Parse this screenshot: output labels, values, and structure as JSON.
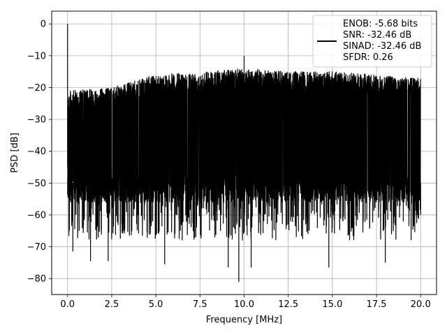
{
  "chart_data": {
    "type": "line",
    "xlabel": "Frequency [MHz]",
    "ylabel": "PSD [dB]",
    "xlim": [
      -0.9,
      20.9
    ],
    "ylim": [
      -85,
      4
    ],
    "x_ticks": [
      0.0,
      2.5,
      5.0,
      7.5,
      10.0,
      12.5,
      15.0,
      17.5,
      20.0
    ],
    "x_tick_labels": [
      "0.0",
      "2.5",
      "5.0",
      "7.5",
      "10.0",
      "12.5",
      "15.0",
      "17.5",
      "20.0"
    ],
    "y_ticks": [
      0,
      -10,
      -20,
      -30,
      -40,
      -50,
      -60,
      -70,
      -80
    ],
    "y_tick_labels": [
      "0",
      "−10",
      "−20",
      "−30",
      "−40",
      "−50",
      "−60",
      "−70",
      "−80"
    ],
    "grid": true,
    "legend_position": "top-right",
    "series": [
      {
        "name": "ENOB: -5.68 bits\nSNR: -32.46 dB\nSINAD: -32.46 dB\nSFDR: 0.26",
        "color": "#000000",
        "description_points": {
          "x_range": [
            0,
            20
          ],
          "peak": {
            "x": 0.0,
            "y": 0
          },
          "spur": {
            "x": 10.0,
            "y": -10
          },
          "upper_envelope": [
            [
              0.1,
              -21
            ],
            [
              2.5,
              -20
            ],
            [
              5,
              -16
            ],
            [
              7.5,
              -15
            ],
            [
              10,
              -14
            ],
            [
              12.5,
              -15
            ],
            [
              15,
              -15
            ],
            [
              17.5,
              -16
            ],
            [
              20,
              -17
            ]
          ],
          "lower_floor": [
            [
              0.1,
              -65
            ],
            [
              0.3,
              -71.5
            ],
            [
              1.3,
              -74.5
            ],
            [
              2.3,
              -74.5
            ],
            [
              5.5,
              -75.5
            ],
            [
              9.1,
              -76.5
            ],
            [
              9.7,
              -81
            ],
            [
              10.4,
              -76.5
            ],
            [
              14.8,
              -76.5
            ],
            [
              18,
              -75
            ],
            [
              20,
              -60
            ]
          ]
        }
      }
    ],
    "legend_lines": [
      "ENOB: -5.68 bits",
      "SNR: -32.46 dB",
      "SINAD: -32.46 dB",
      "SFDR: 0.26"
    ]
  }
}
